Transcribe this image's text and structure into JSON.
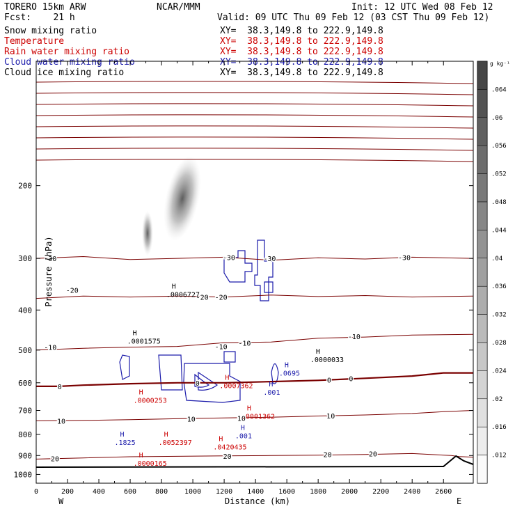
{
  "header": {
    "model": "TORERO   15km ARW",
    "source": "NCAR/MMM",
    "init": "Init: 12 UTC Wed 08 Feb 12",
    "fcst": "Fcst:    21 h",
    "valid": "Valid: 09 UTC Thu 09 Feb 12 (03 CST Thu 09 Feb 12)"
  },
  "fields": [
    {
      "name": "Snow mixing ratio",
      "xy": "XY=  38.3,149.8 to 222.9,149.8",
      "color": "#000000"
    },
    {
      "name": "Temperature",
      "xy": "XY=  38.3,149.8 to 222.9,149.8",
      "color": "#cc0000"
    },
    {
      "name": "Rain water mixing ratio",
      "xy": "XY=  38.3,149.8 to 222.9,149.8",
      "color": "#cc0000"
    },
    {
      "name": "Cloud water mixing ratio",
      "xy": "XY=  38.3,149.8 to 222.9,149.8",
      "color": "#1a1aaa"
    },
    {
      "name": "Cloud ice mixing ratio",
      "xy": "XY=  38.3,149.8 to 222.9,149.8",
      "color": "#000000"
    }
  ],
  "chart_data": {
    "type": "cross-section",
    "xlabel": "Distance (km)",
    "ylabel": "Pressure (hPa)",
    "xlim": [
      0,
      2790
    ],
    "ylim": [
      1050,
      100
    ],
    "xticks": [
      0,
      100,
      200,
      300,
      400,
      500,
      600,
      700,
      800,
      900,
      1000,
      1100,
      1200,
      1300,
      1400,
      1500,
      1600,
      1700,
      1800,
      1900,
      2000,
      2100,
      2200,
      2300,
      2400,
      2500,
      2600
    ],
    "xtick_labels": [
      "0",
      "200",
      "400",
      "600",
      "800",
      "1000",
      "1200",
      "1400",
      "1600",
      "1800",
      "2000",
      "2200",
      "2400",
      "2600"
    ],
    "yticks": [
      200,
      300,
      400,
      500,
      600,
      700,
      800,
      900,
      1000
    ],
    "x_ends": {
      "west": "W",
      "east": "E"
    },
    "colorbar": {
      "unit": "g kg⁻¹",
      "ticks": [
        ".064",
        ".06",
        ".056",
        ".052",
        ".048",
        ".044",
        ".04",
        ".036",
        ".032",
        ".028",
        ".024",
        ".02",
        ".016",
        ".012"
      ]
    },
    "temperature_contours": [
      {
        "level": "-30",
        "points": [
          [
            0,
            300
          ],
          [
            300,
            297
          ],
          [
            600,
            302
          ],
          [
            900,
            300
          ],
          [
            1200,
            298
          ],
          [
            1500,
            303
          ],
          [
            1800,
            299
          ],
          [
            2100,
            301
          ],
          [
            2400,
            298
          ],
          [
            2790,
            300
          ]
        ]
      },
      {
        "level": "-20",
        "points": [
          [
            0,
            375
          ],
          [
            300,
            370
          ],
          [
            600,
            372
          ],
          [
            900,
            370
          ],
          [
            1200,
            372
          ],
          [
            1500,
            368
          ],
          [
            1800,
            371
          ],
          [
            2100,
            369
          ],
          [
            2400,
            372
          ],
          [
            2790,
            370
          ]
        ]
      },
      {
        "level": "-10",
        "points": [
          [
            0,
            500
          ],
          [
            300,
            495
          ],
          [
            600,
            492
          ],
          [
            900,
            490
          ],
          [
            1200,
            480
          ],
          [
            1500,
            478
          ],
          [
            1800,
            468
          ],
          [
            2100,
            465
          ],
          [
            2400,
            460
          ],
          [
            2790,
            458
          ]
        ]
      },
      {
        "level": "0",
        "points": [
          [
            0,
            612
          ],
          [
            150,
            612
          ],
          [
            300,
            608
          ],
          [
            600,
            603
          ],
          [
            900,
            600
          ],
          [
            1200,
            600
          ],
          [
            1500,
            596
          ],
          [
            1800,
            592
          ],
          [
            2100,
            585
          ],
          [
            2400,
            578
          ],
          [
            2600,
            568
          ],
          [
            2790,
            568
          ]
        ]
      },
      {
        "level": "10",
        "points": [
          [
            0,
            742
          ],
          [
            300,
            740
          ],
          [
            600,
            737
          ],
          [
            900,
            733
          ],
          [
            1200,
            730
          ],
          [
            1500,
            727
          ],
          [
            1800,
            722
          ],
          [
            2100,
            718
          ],
          [
            2400,
            712
          ],
          [
            2600,
            705
          ],
          [
            2790,
            700
          ]
        ]
      },
      {
        "level": "20",
        "points": [
          [
            0,
            918
          ],
          [
            300,
            912
          ],
          [
            600,
            906
          ],
          [
            900,
            904
          ],
          [
            1200,
            902
          ],
          [
            1500,
            900
          ],
          [
            1800,
            898
          ],
          [
            2100,
            895
          ],
          [
            2400,
            890
          ],
          [
            2650,
            900
          ],
          [
            2700,
            905
          ],
          [
            2790,
            908
          ]
        ]
      }
    ],
    "temperature_labels": [
      {
        "text": "-30",
        "x": 90,
        "p": 300
      },
      {
        "text": "-30",
        "x": 1230,
        "p": 298
      },
      {
        "text": "-30",
        "x": 1490,
        "p": 300
      },
      {
        "text": "-30",
        "x": 2350,
        "p": 298
      },
      {
        "text": "-20",
        "x": 230,
        "p": 358
      },
      {
        "text": "-20",
        "x": 1060,
        "p": 372
      },
      {
        "text": "-20",
        "x": 1180,
        "p": 372
      },
      {
        "text": "-10",
        "x": 90,
        "p": 492
      },
      {
        "text": "-10",
        "x": 1180,
        "p": 490
      },
      {
        "text": "-10",
        "x": 1330,
        "p": 480
      },
      {
        "text": "-10",
        "x": 2030,
        "p": 463
      },
      {
        "text": "0",
        "x": 150,
        "p": 612
      },
      {
        "text": "0",
        "x": 1030,
        "p": 600
      },
      {
        "text": "0",
        "x": 1870,
        "p": 590
      },
      {
        "text": "0",
        "x": 2010,
        "p": 585
      },
      {
        "text": "10",
        "x": 160,
        "p": 742
      },
      {
        "text": "10",
        "x": 990,
        "p": 733
      },
      {
        "text": "10",
        "x": 1310,
        "p": 731
      },
      {
        "text": "10",
        "x": 1880,
        "p": 720
      },
      {
        "text": "20",
        "x": 120,
        "p": 915
      },
      {
        "text": "20",
        "x": 1220,
        "p": 902
      },
      {
        "text": "20",
        "x": 1860,
        "p": 893
      },
      {
        "text": "20",
        "x": 2150,
        "p": 890
      }
    ],
    "maxima": [
      {
        "label": "H",
        "value": ".0006727",
        "x": 830,
        "p": 355,
        "color": "#000000"
      },
      {
        "label": "H",
        "value": ".0001575",
        "x": 580,
        "p": 460,
        "color": "#000000"
      },
      {
        "label": "H",
        "value": ".0000033",
        "x": 1750,
        "p": 510,
        "color": "#000000"
      },
      {
        "label": "H",
        "value": ".0695",
        "x": 1550,
        "p": 550,
        "color": "#1a1aaa"
      },
      {
        "label": "H",
        "value": ".0007362",
        "x": 1170,
        "p": 590,
        "color": "#cc0000"
      },
      {
        "label": "H",
        "value": ".001",
        "x": 1450,
        "p": 612,
        "color": "#1a1aaa"
      },
      {
        "label": "H",
        "value": ".0000253",
        "x": 620,
        "p": 640,
        "color": "#cc0000"
      },
      {
        "label": "H",
        "value": ".0001362",
        "x": 1310,
        "p": 700,
        "color": "#cc0000"
      },
      {
        "label": "H",
        "value": ".001",
        "x": 1270,
        "p": 780,
        "color": "#1a1aaa"
      },
      {
        "label": "H",
        "value": ".1825",
        "x": 500,
        "p": 810,
        "color": "#1a1aaa"
      },
      {
        "label": "H",
        "value": ".0052397",
        "x": 780,
        "p": 810,
        "color": "#cc0000"
      },
      {
        "label": "H",
        "value": ".0420435",
        "x": 1130,
        "p": 830,
        "color": "#cc0000"
      },
      {
        "label": "H",
        "value": ".0000165",
        "x": 620,
        "p": 910,
        "color": "#cc0000"
      }
    ]
  }
}
